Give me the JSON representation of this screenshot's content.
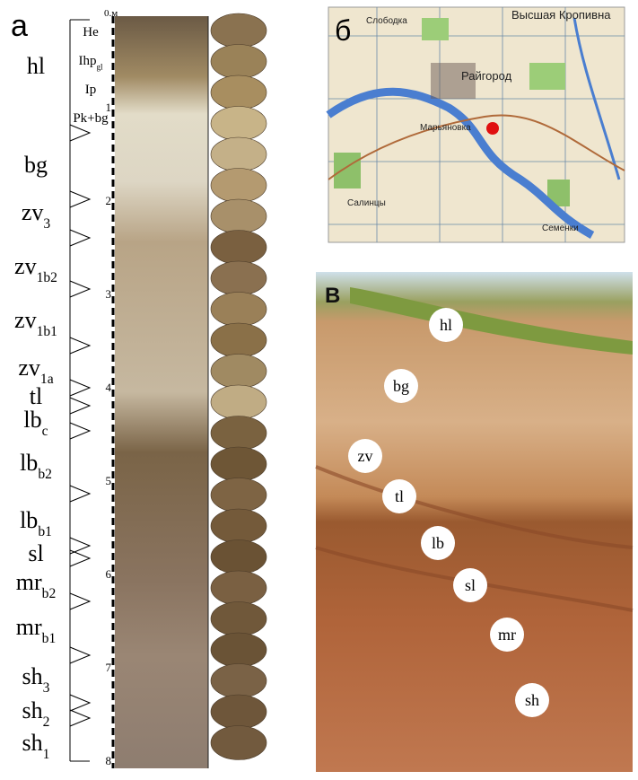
{
  "panel_a": {
    "label": "а",
    "depth_unit_label": "0.м",
    "depth_ticks": [
      1,
      2,
      3,
      4,
      5,
      6,
      7,
      8
    ],
    "sublabels": [
      {
        "main": "He"
      },
      {
        "main": "Ihp",
        "sub": "gl"
      },
      {
        "main": "Ip"
      },
      {
        "main": "Pk+bg"
      }
    ],
    "horizons": [
      {
        "main": "hl"
      },
      {
        "main": "bg"
      },
      {
        "main": "zv",
        "sub": "3"
      },
      {
        "main": "zv",
        "sub": "1b2"
      },
      {
        "main": "zv",
        "sub": "1b1"
      },
      {
        "main": "zv",
        "sub": "1a"
      },
      {
        "main": "tl"
      },
      {
        "main": "lb",
        "sub": "c"
      },
      {
        "main": "lb",
        "sub": "b2"
      },
      {
        "main": "lb",
        "sub": "b1"
      },
      {
        "main": "sl"
      },
      {
        "main": "mr",
        "sub": "b2"
      },
      {
        "main": "mr",
        "sub": "b1"
      },
      {
        "main": "sh",
        "sub": "3"
      },
      {
        "main": "sh",
        "sub": "2"
      },
      {
        "main": "sh",
        "sub": "1"
      }
    ]
  },
  "panel_b": {
    "label": "б",
    "places": [
      "Слободка",
      "Высшая Кропивна",
      "Райгород",
      "Марьяновка",
      "Салинцы",
      "Семенки"
    ]
  },
  "panel_c": {
    "label": "В",
    "layers": [
      "hl",
      "bg",
      "zv",
      "tl",
      "lb",
      "sl",
      "mr",
      "sh"
    ]
  }
}
